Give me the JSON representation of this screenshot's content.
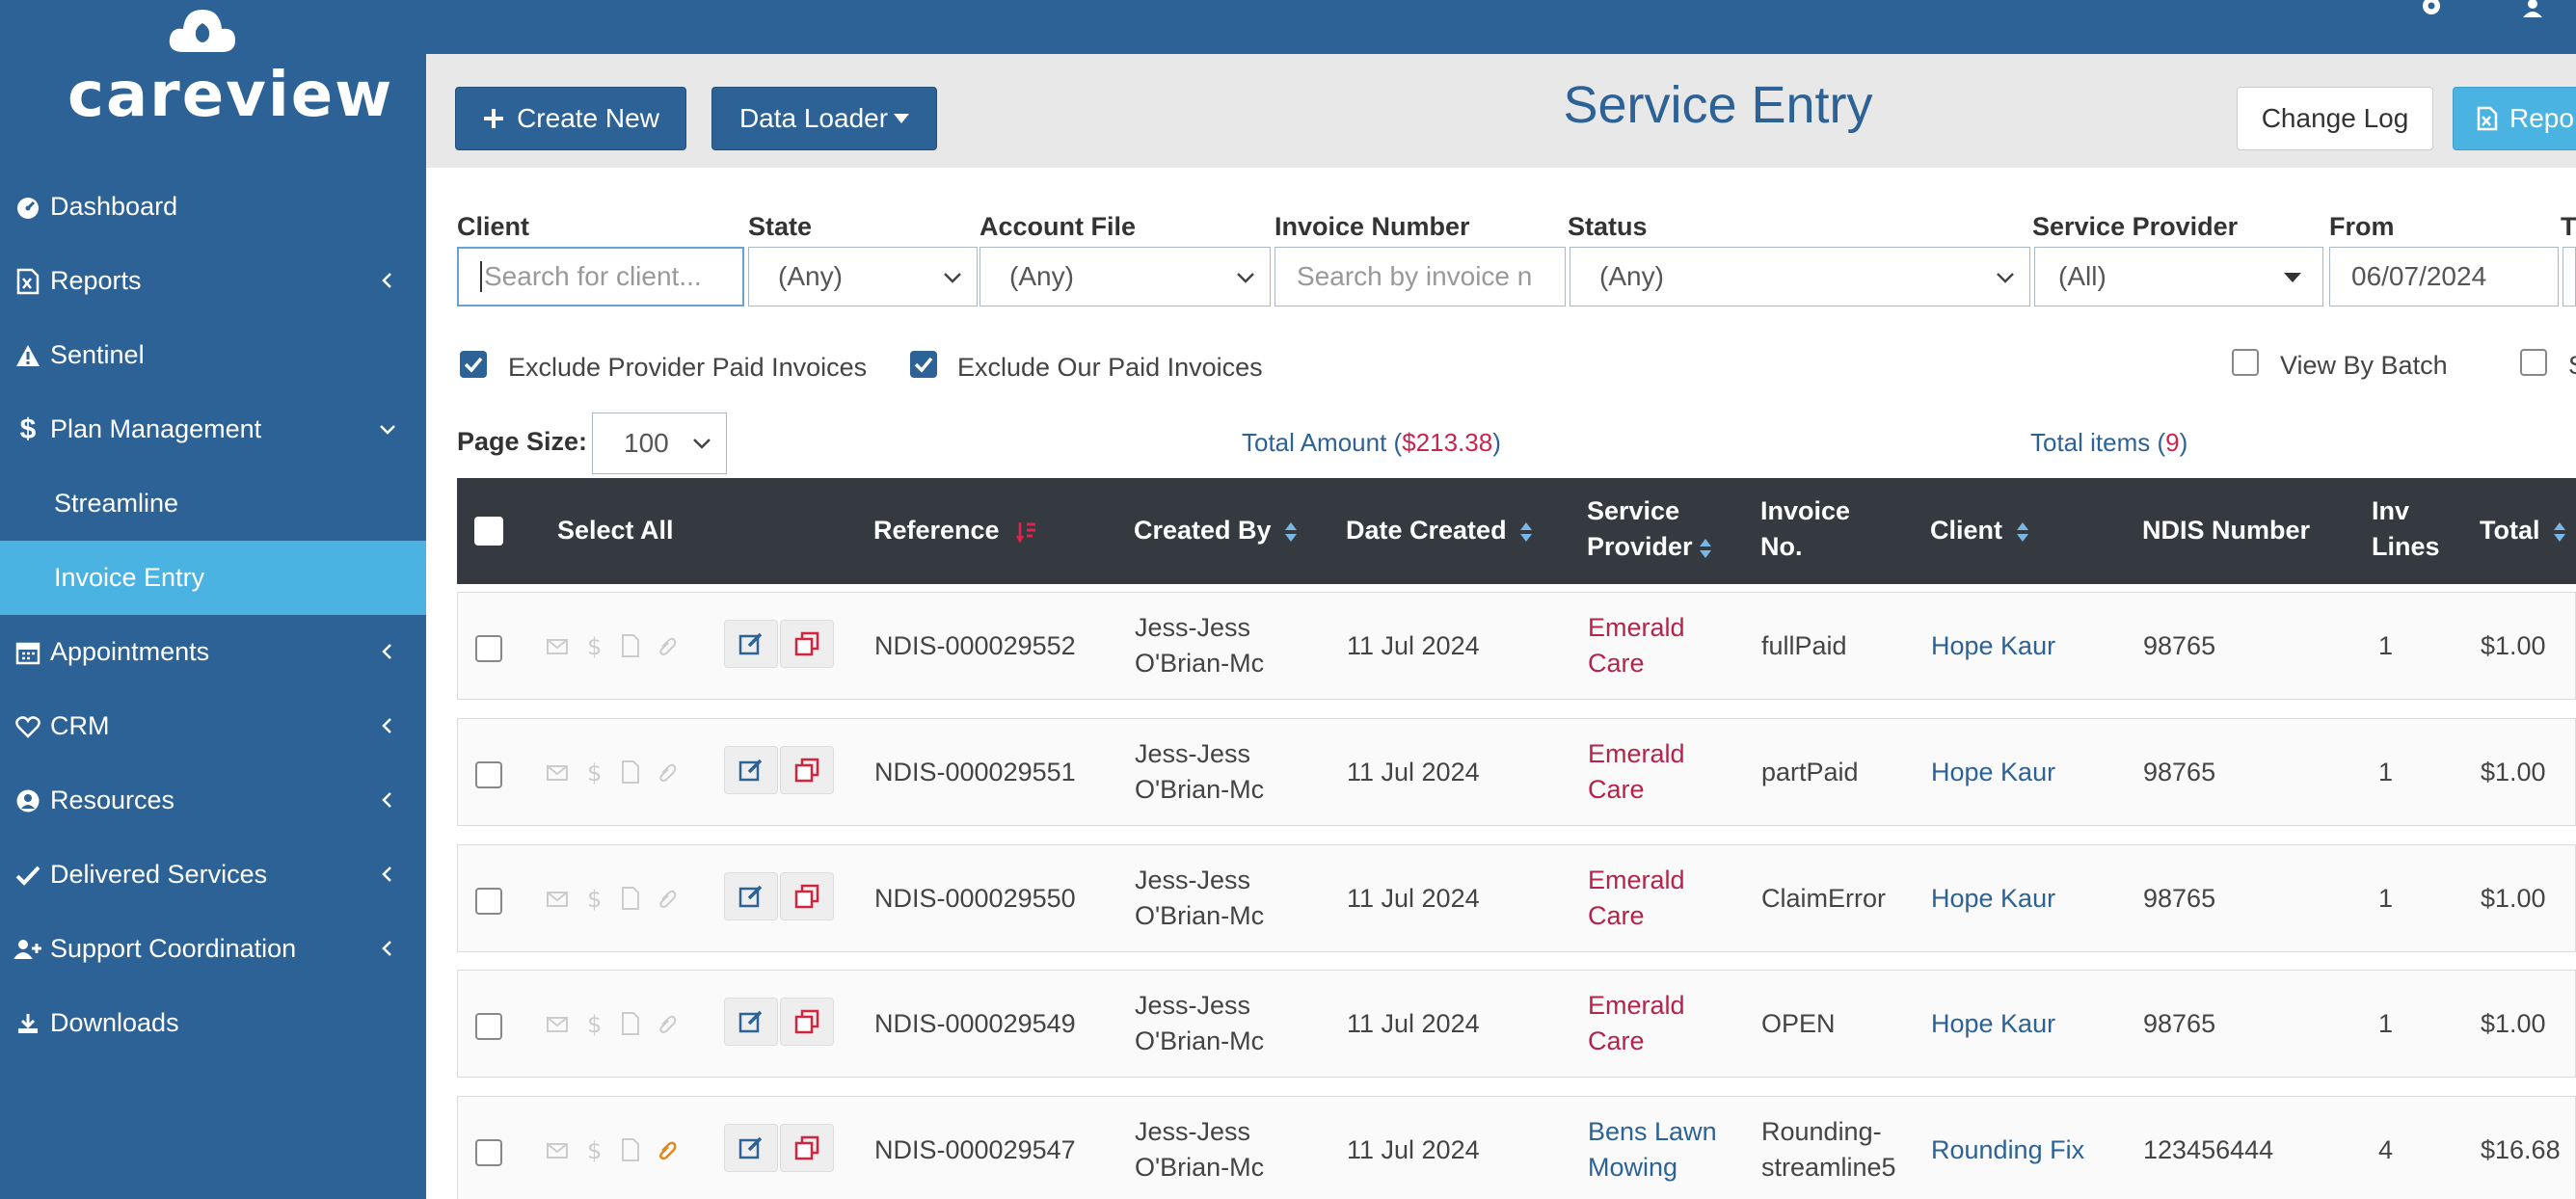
{
  "app": {
    "logo_text": "careview"
  },
  "sidebar": {
    "items": [
      {
        "label": "Dashboard",
        "icon": "tachometer-icon"
      },
      {
        "label": "Reports",
        "icon": "file-excel-icon"
      },
      {
        "label": "Sentinel",
        "icon": "warning-icon"
      },
      {
        "label": "Plan Management",
        "icon": "dollar-icon"
      },
      {
        "label": "Streamline"
      },
      {
        "label": "Invoice Entry"
      },
      {
        "label": "Appointments",
        "icon": "calendar-icon"
      },
      {
        "label": "CRM",
        "icon": "heart-icon"
      },
      {
        "label": "Resources",
        "icon": "user-circle-icon"
      },
      {
        "label": "Delivered Services",
        "icon": "check-icon"
      },
      {
        "label": "Support Coordination",
        "icon": "user-plus-icon"
      },
      {
        "label": "Downloads",
        "icon": "download-icon"
      }
    ]
  },
  "header": {
    "create_new": "Create New",
    "data_loader": "Data Loader",
    "title": "Service Entry",
    "change_log": "Change Log",
    "report": "Repo"
  },
  "filters": {
    "client_label": "Client",
    "client_placeholder": "Search for client...",
    "state_label": "State",
    "state_value": "(Any)",
    "account_file_label": "Account File",
    "account_file_value": "(Any)",
    "invoice_number_label": "Invoice Number",
    "invoice_number_placeholder": "Search by invoice n",
    "status_label": "Status",
    "status_value": "(Any)",
    "service_provider_label": "Service Provider",
    "service_provider_value": "(All)",
    "from_label": "From",
    "from_value": "06/07/2024",
    "to_label": "T",
    "exclude_provider_paid": "Exclude Provider Paid Invoices",
    "exclude_our_paid": "Exclude Our Paid Invoices",
    "view_by_batch": "View By Batch",
    "extra_option": "S"
  },
  "summary": {
    "page_size_label": "Page Size:",
    "page_size_value": "100",
    "total_amount_label": "Total Amount",
    "total_amount_value": "$213.38",
    "total_items_label": "Total items",
    "total_items_value": "9"
  },
  "table": {
    "headers": {
      "select_all": "Select All",
      "reference": "Reference",
      "created_by": "Created By",
      "date_created": "Date Created",
      "service_provider_1": "Service",
      "service_provider_2": "Provider",
      "invoice_no_1": "Invoice",
      "invoice_no_2": "No.",
      "client": "Client",
      "ndis_number": "NDIS Number",
      "inv_lines_1": "Inv",
      "inv_lines_2": "Lines",
      "total": "Total"
    },
    "rows": [
      {
        "reference": "NDIS-000029552",
        "created_by_1": "Jess-Jess",
        "created_by_2": "O'Brian-Mc",
        "date_created": "11 Jul 2024",
        "provider_1": "Emerald",
        "provider_2": "Care",
        "invoice_no_1": "fullPaid",
        "invoice_no_2": "",
        "client": "Hope Kaur",
        "ndis": "98765",
        "lines": "1",
        "total": "$1.00"
      },
      {
        "reference": "NDIS-000029551",
        "created_by_1": "Jess-Jess",
        "created_by_2": "O'Brian-Mc",
        "date_created": "11 Jul 2024",
        "provider_1": "Emerald",
        "provider_2": "Care",
        "invoice_no_1": "partPaid",
        "invoice_no_2": "",
        "client": "Hope Kaur",
        "ndis": "98765",
        "lines": "1",
        "total": "$1.00"
      },
      {
        "reference": "NDIS-000029550",
        "created_by_1": "Jess-Jess",
        "created_by_2": "O'Brian-Mc",
        "date_created": "11 Jul 2024",
        "provider_1": "Emerald",
        "provider_2": "Care",
        "invoice_no_1": "ClaimError",
        "invoice_no_2": "",
        "client": "Hope Kaur",
        "ndis": "98765",
        "lines": "1",
        "total": "$1.00"
      },
      {
        "reference": "NDIS-000029549",
        "created_by_1": "Jess-Jess",
        "created_by_2": "O'Brian-Mc",
        "date_created": "11 Jul 2024",
        "provider_1": "Emerald",
        "provider_2": "Care",
        "invoice_no_1": "OPEN",
        "invoice_no_2": "",
        "client": "Hope Kaur",
        "ndis": "98765",
        "lines": "1",
        "total": "$1.00"
      },
      {
        "reference": "NDIS-000029547",
        "created_by_1": "Jess-Jess",
        "created_by_2": "O'Brian-Mc",
        "date_created": "11 Jul 2024",
        "provider_1": "Bens Lawn",
        "provider_2": "Mowing",
        "invoice_no_1": "Rounding-",
        "invoice_no_2": "streamline5",
        "client": "Rounding Fix",
        "ndis": "123456444",
        "lines": "4",
        "total": "$16.68"
      }
    ]
  },
  "colors": {
    "primary": "#2c6296",
    "accent": "#4ab3e2",
    "link_red": "#b5224a",
    "table_header": "#343a40"
  }
}
